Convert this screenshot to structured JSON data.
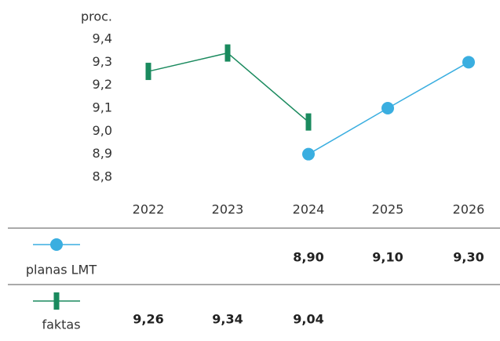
{
  "chart_data": {
    "type": "line",
    "y_axis_label": "proc.",
    "categories": [
      "2022",
      "2023",
      "2024",
      "2025",
      "2026"
    ],
    "ylim": [
      8.8,
      9.4
    ],
    "yticks": [
      {
        "value": 8.8,
        "label": "8,8"
      },
      {
        "value": 8.9,
        "label": "8,9"
      },
      {
        "value": 9.0,
        "label": "9,0"
      },
      {
        "value": 9.1,
        "label": "9,1"
      },
      {
        "value": 9.2,
        "label": "9,2"
      },
      {
        "value": 9.3,
        "label": "9,3"
      },
      {
        "value": 9.4,
        "label": "9,4"
      }
    ],
    "series": [
      {
        "name": "planas LMT",
        "color": "#3aaee0",
        "marker": "circle",
        "values": [
          null,
          null,
          8.9,
          9.1,
          9.3
        ],
        "value_labels": [
          null,
          null,
          "8,90",
          "9,10",
          "9,30"
        ]
      },
      {
        "name": "faktas",
        "color": "#1a8a5e",
        "marker": "bar",
        "values": [
          9.26,
          9.34,
          9.04,
          null,
          null
        ],
        "value_labels": [
          "9,26",
          "9,34",
          "9,04",
          null,
          null
        ]
      }
    ]
  }
}
